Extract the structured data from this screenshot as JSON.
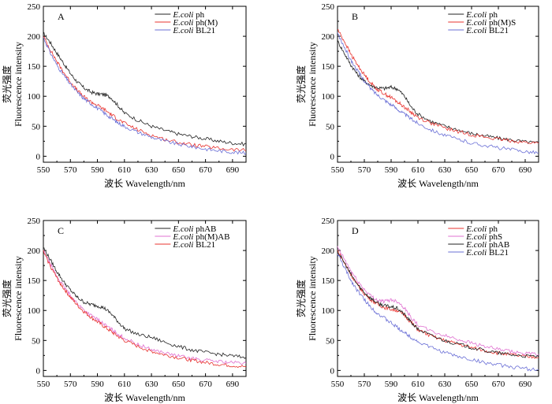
{
  "chart_data": [
    {
      "type": "line",
      "panel_label": "A",
      "xlabel": "波长 Wavelength/nm",
      "ylabel_cn": "荧光强度",
      "ylabel_en": "Fluorescence intensity",
      "xlim": [
        550,
        700
      ],
      "ylim": [
        -10,
        250
      ],
      "xticks": [
        550,
        570,
        590,
        610,
        630,
        650,
        670,
        690
      ],
      "yticks": [
        0,
        50,
        100,
        150,
        200,
        250
      ],
      "legend_position": "top-right",
      "series": [
        {
          "legend_italic": "E.coli",
          "legend_rest": " ph",
          "color": "#222222",
          "x": [
            550,
            555,
            560,
            565,
            570,
            575,
            580,
            585,
            590,
            595,
            600,
            605,
            610,
            620,
            630,
            640,
            650,
            660,
            670,
            680,
            690,
            700
          ],
          "y": [
            205,
            190,
            172,
            155,
            138,
            124,
            114,
            107,
            104,
            103,
            98,
            85,
            72,
            60,
            50,
            43,
            37,
            33,
            29,
            25,
            22,
            20
          ]
        },
        {
          "legend_italic": "E.coli",
          "legend_rest": " ph(M)",
          "color": "#e8332f",
          "x": [
            550,
            555,
            560,
            565,
            570,
            575,
            580,
            585,
            590,
            595,
            600,
            605,
            610,
            620,
            630,
            640,
            650,
            660,
            670,
            680,
            690,
            700
          ],
          "y": [
            200,
            178,
            158,
            140,
            124,
            110,
            99,
            91,
            85,
            78,
            70,
            62,
            55,
            44,
            35,
            28,
            23,
            19,
            16,
            13,
            11,
            10
          ]
        },
        {
          "legend_italic": "E.coli",
          "legend_rest": " BL21",
          "color": "#6a6fd6",
          "x": [
            550,
            555,
            560,
            565,
            570,
            575,
            580,
            585,
            590,
            595,
            600,
            605,
            610,
            620,
            630,
            640,
            650,
            660,
            670,
            680,
            690,
            700
          ],
          "y": [
            198,
            173,
            152,
            135,
            120,
            107,
            96,
            88,
            80,
            72,
            64,
            56,
            50,
            40,
            32,
            25,
            20,
            16,
            12,
            9,
            7,
            5
          ]
        }
      ]
    },
    {
      "type": "line",
      "panel_label": "B",
      "xlabel": "波长 Wavelength/nm",
      "ylabel_cn": "荧光强度",
      "ylabel_en": "Fluorescence intensity",
      "xlim": [
        550,
        700
      ],
      "ylim": [
        -10,
        250
      ],
      "xticks": [
        550,
        570,
        590,
        610,
        630,
        650,
        670,
        690
      ],
      "yticks": [
        0,
        50,
        100,
        150,
        200,
        250
      ],
      "legend_position": "top-right",
      "series": [
        {
          "legend_italic": "E.coli",
          "legend_rest": " ph",
          "color": "#222222",
          "x": [
            550,
            555,
            560,
            565,
            570,
            575,
            580,
            585,
            590,
            595,
            600,
            605,
            610,
            620,
            630,
            640,
            650,
            660,
            670,
            680,
            690,
            700
          ],
          "y": [
            192,
            172,
            152,
            136,
            125,
            118,
            114,
            113,
            115,
            112,
            100,
            82,
            70,
            58,
            50,
            44,
            38,
            34,
            30,
            27,
            24,
            22
          ]
        },
        {
          "legend_italic": "E.coli",
          "legend_rest": " ph(M)S",
          "color": "#e8332f",
          "x": [
            550,
            555,
            560,
            565,
            570,
            575,
            580,
            585,
            590,
            595,
            600,
            605,
            610,
            620,
            630,
            640,
            650,
            660,
            670,
            680,
            690,
            700
          ],
          "y": [
            212,
            192,
            170,
            152,
            136,
            122,
            111,
            104,
            98,
            90,
            82,
            73,
            65,
            55,
            47,
            41,
            36,
            32,
            28,
            26,
            23,
            22
          ]
        },
        {
          "legend_italic": "E.coli",
          "legend_rest": " BL21",
          "color": "#6a6fd6",
          "x": [
            550,
            555,
            560,
            565,
            570,
            575,
            580,
            585,
            590,
            595,
            600,
            605,
            610,
            620,
            630,
            640,
            650,
            660,
            670,
            680,
            690,
            700
          ],
          "y": [
            205,
            182,
            160,
            142,
            126,
            112,
            102,
            94,
            86,
            78,
            70,
            62,
            55,
            44,
            35,
            28,
            22,
            18,
            14,
            11,
            8,
            6
          ]
        }
      ]
    },
    {
      "type": "line",
      "panel_label": "C",
      "xlabel": "波长 Wavelength/nm",
      "ylabel_cn": "荧光强度",
      "ylabel_en": "Fluorescence intensity",
      "xlim": [
        550,
        700
      ],
      "ylim": [
        -10,
        250
      ],
      "xticks": [
        550,
        570,
        590,
        610,
        630,
        650,
        670,
        690
      ],
      "yticks": [
        0,
        50,
        100,
        150,
        200,
        250
      ],
      "legend_position": "top-right",
      "series": [
        {
          "legend_italic": "E.coli",
          "legend_rest": " phAB",
          "color": "#222222",
          "x": [
            550,
            555,
            560,
            565,
            570,
            575,
            580,
            585,
            590,
            595,
            600,
            605,
            610,
            620,
            630,
            640,
            650,
            660,
            670,
            680,
            690,
            700
          ],
          "y": [
            205,
            185,
            165,
            148,
            134,
            122,
            114,
            110,
            108,
            104,
            95,
            82,
            70,
            60,
            55,
            47,
            40,
            34,
            30,
            27,
            24,
            22
          ]
        },
        {
          "legend_italic": "E.coli",
          "legend_rest": " ph(M)AB",
          "color": "#e070d0",
          "x": [
            550,
            555,
            560,
            565,
            570,
            575,
            580,
            585,
            590,
            595,
            600,
            605,
            610,
            620,
            630,
            640,
            650,
            660,
            670,
            680,
            690,
            700
          ],
          "y": [
            200,
            178,
            157,
            140,
            125,
            112,
            101,
            92,
            85,
            77,
            69,
            61,
            54,
            43,
            35,
            29,
            24,
            20,
            17,
            15,
            13,
            12
          ]
        },
        {
          "legend_italic": "E.coli",
          "legend_rest": " BL21",
          "color": "#e8332f",
          "x": [
            550,
            555,
            560,
            565,
            570,
            575,
            580,
            585,
            590,
            595,
            600,
            605,
            610,
            620,
            630,
            640,
            650,
            660,
            670,
            680,
            690,
            700
          ],
          "y": [
            198,
            175,
            154,
            137,
            122,
            109,
            98,
            89,
            81,
            73,
            65,
            57,
            50,
            40,
            32,
            26,
            21,
            17,
            13,
            10,
            8,
            6
          ]
        }
      ]
    },
    {
      "type": "line",
      "panel_label": "D",
      "xlabel": "波长 Wavelength/nm",
      "ylabel_cn": "荧光强度",
      "ylabel_en": "Fluorescence intensity",
      "xlim": [
        550,
        700
      ],
      "ylim": [
        -10,
        250
      ],
      "xticks": [
        550,
        570,
        590,
        610,
        630,
        650,
        670,
        690
      ],
      "yticks": [
        0,
        50,
        100,
        150,
        200,
        250
      ],
      "legend_position": "top-right",
      "series": [
        {
          "legend_italic": "E.coli",
          "legend_rest": " ph",
          "color": "#e8332f",
          "x": [
            550,
            555,
            560,
            565,
            570,
            575,
            580,
            585,
            590,
            595,
            600,
            605,
            610,
            620,
            630,
            640,
            650,
            660,
            670,
            680,
            690,
            700
          ],
          "y": [
            200,
            180,
            160,
            142,
            128,
            118,
            110,
            105,
            102,
            100,
            92,
            80,
            68,
            57,
            50,
            44,
            38,
            33,
            29,
            26,
            23,
            22
          ]
        },
        {
          "legend_italic": "E.coli",
          "legend_rest": " phS",
          "color": "#e070d0",
          "x": [
            550,
            555,
            560,
            565,
            570,
            575,
            580,
            585,
            590,
            595,
            600,
            605,
            610,
            620,
            630,
            640,
            650,
            660,
            670,
            680,
            690,
            700
          ],
          "y": [
            205,
            186,
            166,
            149,
            135,
            124,
            117,
            115,
            118,
            115,
            104,
            88,
            76,
            65,
            58,
            52,
            46,
            40,
            35,
            31,
            28,
            27
          ]
        },
        {
          "legend_italic": "E.coli",
          "legend_rest": " phAB",
          "color": "#222222",
          "x": [
            550,
            555,
            560,
            565,
            570,
            575,
            580,
            585,
            590,
            595,
            600,
            605,
            610,
            620,
            630,
            640,
            650,
            660,
            670,
            680,
            690,
            700
          ],
          "y": [
            198,
            180,
            160,
            143,
            130,
            120,
            112,
            108,
            106,
            103,
            93,
            80,
            69,
            58,
            50,
            44,
            38,
            33,
            29,
            26,
            24,
            23
          ]
        },
        {
          "legend_italic": "E.coli",
          "legend_rest": " BL21",
          "color": "#6a6fd6",
          "x": [
            550,
            555,
            560,
            565,
            570,
            575,
            580,
            585,
            590,
            595,
            600,
            605,
            610,
            620,
            630,
            640,
            650,
            660,
            670,
            680,
            690,
            700
          ],
          "y": [
            195,
            172,
            150,
            133,
            118,
            105,
            95,
            87,
            79,
            71,
            63,
            55,
            48,
            38,
            30,
            23,
            18,
            13,
            9,
            6,
            3,
            1
          ]
        }
      ]
    }
  ]
}
